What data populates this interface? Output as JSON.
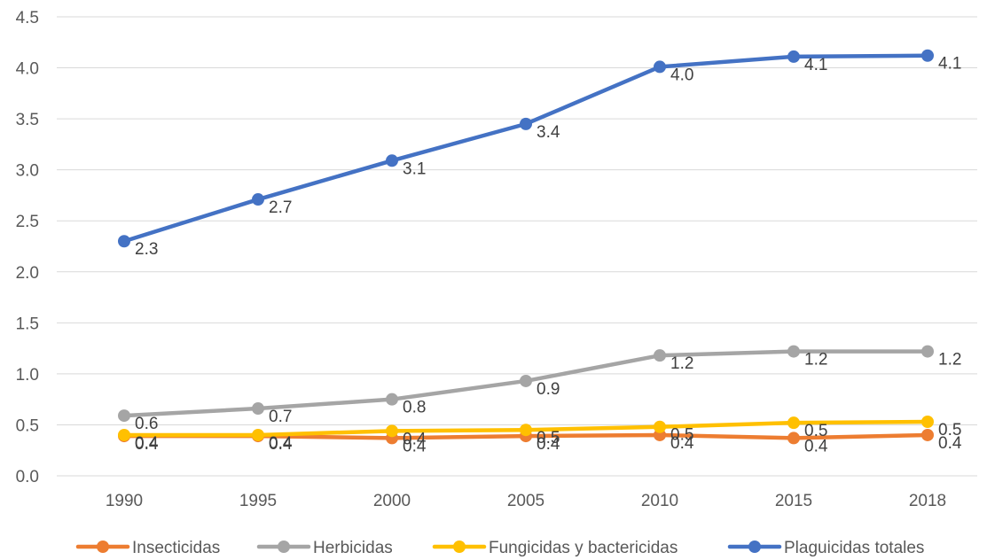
{
  "chart_data": {
    "type": "line",
    "title": "",
    "xlabel": "",
    "ylabel": "",
    "categories": [
      "1990",
      "1995",
      "2000",
      "2005",
      "2010",
      "2015",
      "2018"
    ],
    "ylim": [
      0,
      4.5
    ],
    "yticks": [
      "0.0",
      "0.5",
      "1.0",
      "1.5",
      "2.0",
      "2.5",
      "3.0",
      "3.5",
      "4.0",
      "4.5"
    ],
    "grid": true,
    "legend_position": "bottom",
    "series": [
      {
        "name": "Insecticidas",
        "color": "#ED7D31",
        "values": [
          0.39,
          0.39,
          0.37,
          0.39,
          0.4,
          0.37,
          0.4
        ],
        "labels": [
          "0.4",
          "0.4",
          "0.4",
          "0.4",
          "0.4",
          "0.4",
          "0.4"
        ]
      },
      {
        "name": "Herbicidas",
        "color": "#A5A5A5",
        "values": [
          0.59,
          0.66,
          0.75,
          0.93,
          1.18,
          1.22,
          1.22
        ],
        "labels": [
          "0.6",
          "0.7",
          "0.8",
          "0.9",
          "1.2",
          "1.2",
          "1.2"
        ]
      },
      {
        "name": "Fungicidas y bactericidas",
        "color": "#FFC000",
        "values": [
          0.4,
          0.4,
          0.44,
          0.45,
          0.48,
          0.52,
          0.53
        ],
        "labels": [
          "0.4",
          "0.4",
          "0.4",
          "0.5",
          "0.5",
          "0.5",
          "0.5"
        ]
      },
      {
        "name": "Plaguicidas totales",
        "color": "#4472C4",
        "values": [
          2.3,
          2.71,
          3.09,
          3.45,
          4.01,
          4.11,
          4.12
        ],
        "labels": [
          "2.3",
          "2.7",
          "3.1",
          "3.4",
          "4.0",
          "4.1",
          "4.1"
        ]
      }
    ]
  }
}
